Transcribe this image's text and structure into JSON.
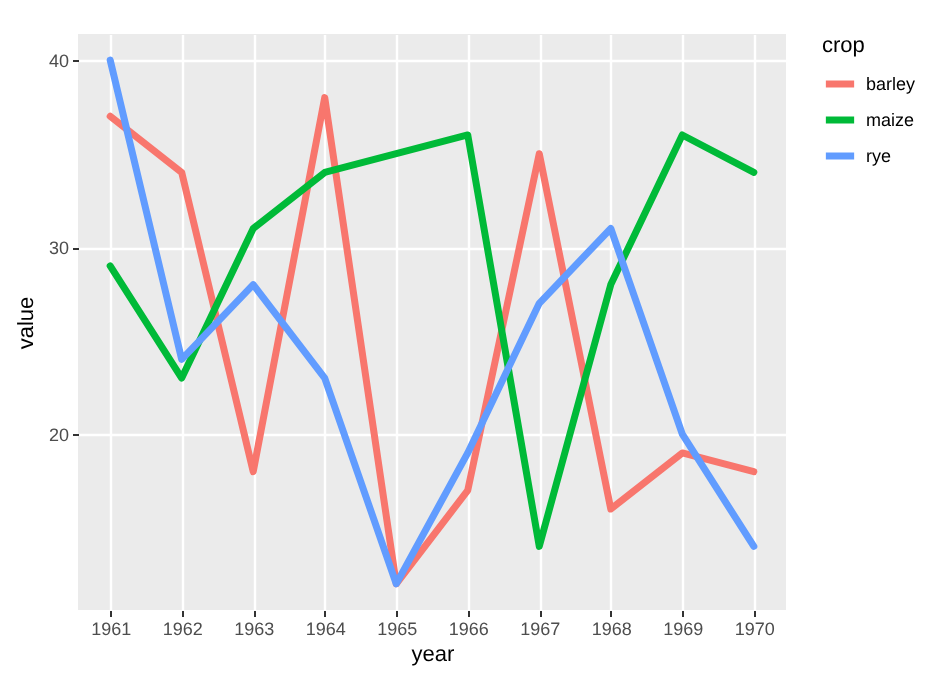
{
  "chart_data": {
    "type": "line",
    "xlabel": "year",
    "ylabel": "value",
    "legend_title": "crop",
    "legend": "right",
    "grid": true,
    "x": [
      1961,
      1962,
      1963,
      1964,
      1965,
      1966,
      1967,
      1968,
      1969,
      1970
    ],
    "xlim": [
      1960.55,
      1970.45
    ],
    "xticks": [
      1961,
      1962,
      1963,
      1964,
      1965,
      1966,
      1967,
      1968,
      1969,
      1970
    ],
    "ylim": [
      10.6,
      41.4
    ],
    "yticks": [
      20,
      30,
      40
    ],
    "series": [
      {
        "name": "barley",
        "color": "#f8766d",
        "values": [
          37,
          34,
          18,
          38,
          12,
          17,
          35,
          16,
          19,
          18
        ]
      },
      {
        "name": "maize",
        "color": "#00ba38",
        "values": [
          29,
          23,
          31,
          34,
          35,
          36,
          14,
          28,
          36,
          34
        ]
      },
      {
        "name": "rye",
        "color": "#619cff",
        "values": [
          40,
          24,
          28,
          23,
          12,
          19,
          27,
          31,
          20,
          14
        ]
      }
    ]
  }
}
